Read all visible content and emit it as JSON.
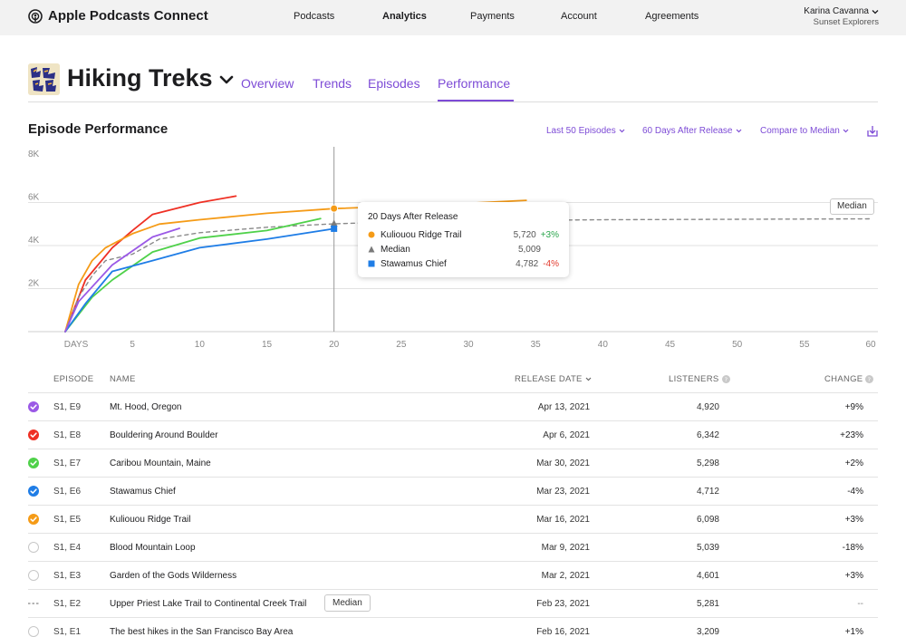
{
  "app": {
    "title": "Apple Podcasts Connect"
  },
  "nav": {
    "items": [
      {
        "label": "Podcasts",
        "active": false
      },
      {
        "label": "Analytics",
        "active": true
      },
      {
        "label": "Payments",
        "active": false
      },
      {
        "label": "Account",
        "active": false
      },
      {
        "label": "Agreements",
        "active": false
      }
    ]
  },
  "user": {
    "name": "Karina Cavanna",
    "team": "Sunset Explorers"
  },
  "podcast": {
    "title": "Hiking Treks",
    "artwork_text": "Hiking Treks",
    "tabs": [
      {
        "label": "Overview",
        "active": false
      },
      {
        "label": "Trends",
        "active": false
      },
      {
        "label": "Episodes",
        "active": false
      },
      {
        "label": "Performance",
        "active": true
      }
    ]
  },
  "section": {
    "title": "Episode Performance",
    "filters": {
      "episodes": "Last 50 Episodes",
      "window": "60 Days After Release",
      "compare": "Compare to Median"
    }
  },
  "colors": {
    "accent": "#7d4bd6",
    "purple": "#9b59e6",
    "red": "#ef3024",
    "green": "#4fd14a",
    "blue": "#1f7de6",
    "orange": "#f59b17",
    "median": "#8a8a8a",
    "positive": "#2ba64d",
    "negative": "#e23b2e"
  },
  "chart_data": {
    "type": "line",
    "x_ticks": [
      "DAYS",
      "5",
      "10",
      "15",
      "20",
      "25",
      "30",
      "35",
      "40",
      "45",
      "50",
      "55",
      "60"
    ],
    "y_ticks": [
      "8K",
      "6K",
      "4K",
      "2K"
    ],
    "xlim": [
      0,
      60
    ],
    "ylim": [
      0,
      8000
    ],
    "grid": true,
    "cursor_day": 20,
    "median_label": "Median",
    "series": [
      {
        "name": "Bouldering Around Boulder",
        "color": "red",
        "style": "solid",
        "x": [
          0,
          1.5,
          3.5,
          5,
          6.5,
          10,
          12.7
        ],
        "y": [
          0,
          2400,
          3900,
          4700,
          5450,
          6000,
          6300
        ]
      },
      {
        "name": "Kuliouou Ridge Trail",
        "color": "orange",
        "style": "solid",
        "x": [
          0,
          1,
          2,
          3,
          5,
          7,
          10,
          15,
          20,
          28,
          34.3
        ],
        "y": [
          0,
          2200,
          3300,
          3900,
          4550,
          5000,
          5200,
          5500,
          5720,
          5900,
          6100
        ]
      },
      {
        "name": "Median",
        "color": "median",
        "style": "dashed",
        "x": [
          0,
          1,
          2,
          3,
          5,
          7,
          10,
          15,
          20,
          25,
          30,
          40,
          50,
          60
        ],
        "y": [
          0,
          1600,
          2600,
          3300,
          3600,
          4300,
          4600,
          4850,
          5009,
          5100,
          5150,
          5200,
          5220,
          5240
        ]
      },
      {
        "name": "Caribou Mountain, Maine",
        "color": "green",
        "style": "solid",
        "x": [
          0,
          2,
          3.5,
          6.5,
          10,
          15,
          19
        ],
        "y": [
          0,
          1600,
          2400,
          3700,
          4350,
          4700,
          5250
        ]
      },
      {
        "name": "Stawamus Chief",
        "color": "blue",
        "style": "solid",
        "x": [
          0,
          1.5,
          3.5,
          6.5,
          10,
          15,
          20
        ],
        "y": [
          0,
          1300,
          2800,
          3300,
          3900,
          4300,
          4782
        ]
      },
      {
        "name": "Mt. Hood, Oregon",
        "color": "purple",
        "style": "solid",
        "x": [
          0,
          1,
          3.5,
          6.5,
          8.5
        ],
        "y": [
          0,
          1400,
          3100,
          4400,
          4800
        ]
      }
    ],
    "tooltip": {
      "title": "20 Days After Release",
      "rows": [
        {
          "name": "Kuliouou Ridge Trail",
          "value": "5,720",
          "change": "+3%",
          "color": "orange",
          "marker": "circle"
        },
        {
          "name": "Median",
          "value": "5,009",
          "change": "",
          "color": "median",
          "marker": "triangle"
        },
        {
          "name": "Stawamus Chief",
          "value": "4,782",
          "change": "-4%",
          "color": "blue",
          "marker": "square"
        }
      ]
    }
  },
  "table": {
    "headers": {
      "episode": "EPISODE",
      "name": "NAME",
      "release_date": "RELEASE DATE",
      "listeners": "LISTENERS",
      "change": "CHANGE"
    },
    "rows": [
      {
        "episode": "S1, E9",
        "name": "Mt. Hood, Oregon",
        "date": "Apr 13, 2021",
        "listeners": "4,920",
        "change": "+9%",
        "checked": true,
        "color": "purple",
        "median": false
      },
      {
        "episode": "S1, E8",
        "name": "Bouldering Around Boulder",
        "date": "Apr 6, 2021",
        "listeners": "6,342",
        "change": "+23%",
        "checked": true,
        "color": "red",
        "median": false
      },
      {
        "episode": "S1, E7",
        "name": "Caribou Mountain, Maine",
        "date": "Mar 30, 2021",
        "listeners": "5,298",
        "change": "+2%",
        "checked": true,
        "color": "green",
        "median": false
      },
      {
        "episode": "S1, E6",
        "name": "Stawamus Chief",
        "date": "Mar 23, 2021",
        "listeners": "4,712",
        "change": "-4%",
        "checked": true,
        "color": "blue",
        "median": false
      },
      {
        "episode": "S1, E5",
        "name": "Kuliouou Ridge Trail",
        "date": "Mar 16, 2021",
        "listeners": "6,098",
        "change": "+3%",
        "checked": true,
        "color": "orange",
        "median": false
      },
      {
        "episode": "S1, E4",
        "name": "Blood Mountain Loop",
        "date": "Mar 9, 2021",
        "listeners": "5,039",
        "change": "-18%",
        "checked": false,
        "color": "",
        "median": false
      },
      {
        "episode": "S1, E3",
        "name": "Garden of the Gods Wilderness",
        "date": "Mar 2, 2021",
        "listeners": "4,601",
        "change": "+3%",
        "checked": false,
        "color": "",
        "median": false
      },
      {
        "episode": "S1, E2",
        "name": "Upper Priest Lake Trail to Continental Creek Trail",
        "date": "Feb 23, 2021",
        "listeners": "5,281",
        "change": "--",
        "checked": false,
        "color": "",
        "median": true,
        "median_label": "Median"
      },
      {
        "episode": "S1, E1",
        "name": "The best hikes in the San Francisco Bay Area",
        "date": "Feb 16, 2021",
        "listeners": "3,209",
        "change": "+1%",
        "checked": false,
        "color": "",
        "median": false
      }
    ]
  }
}
